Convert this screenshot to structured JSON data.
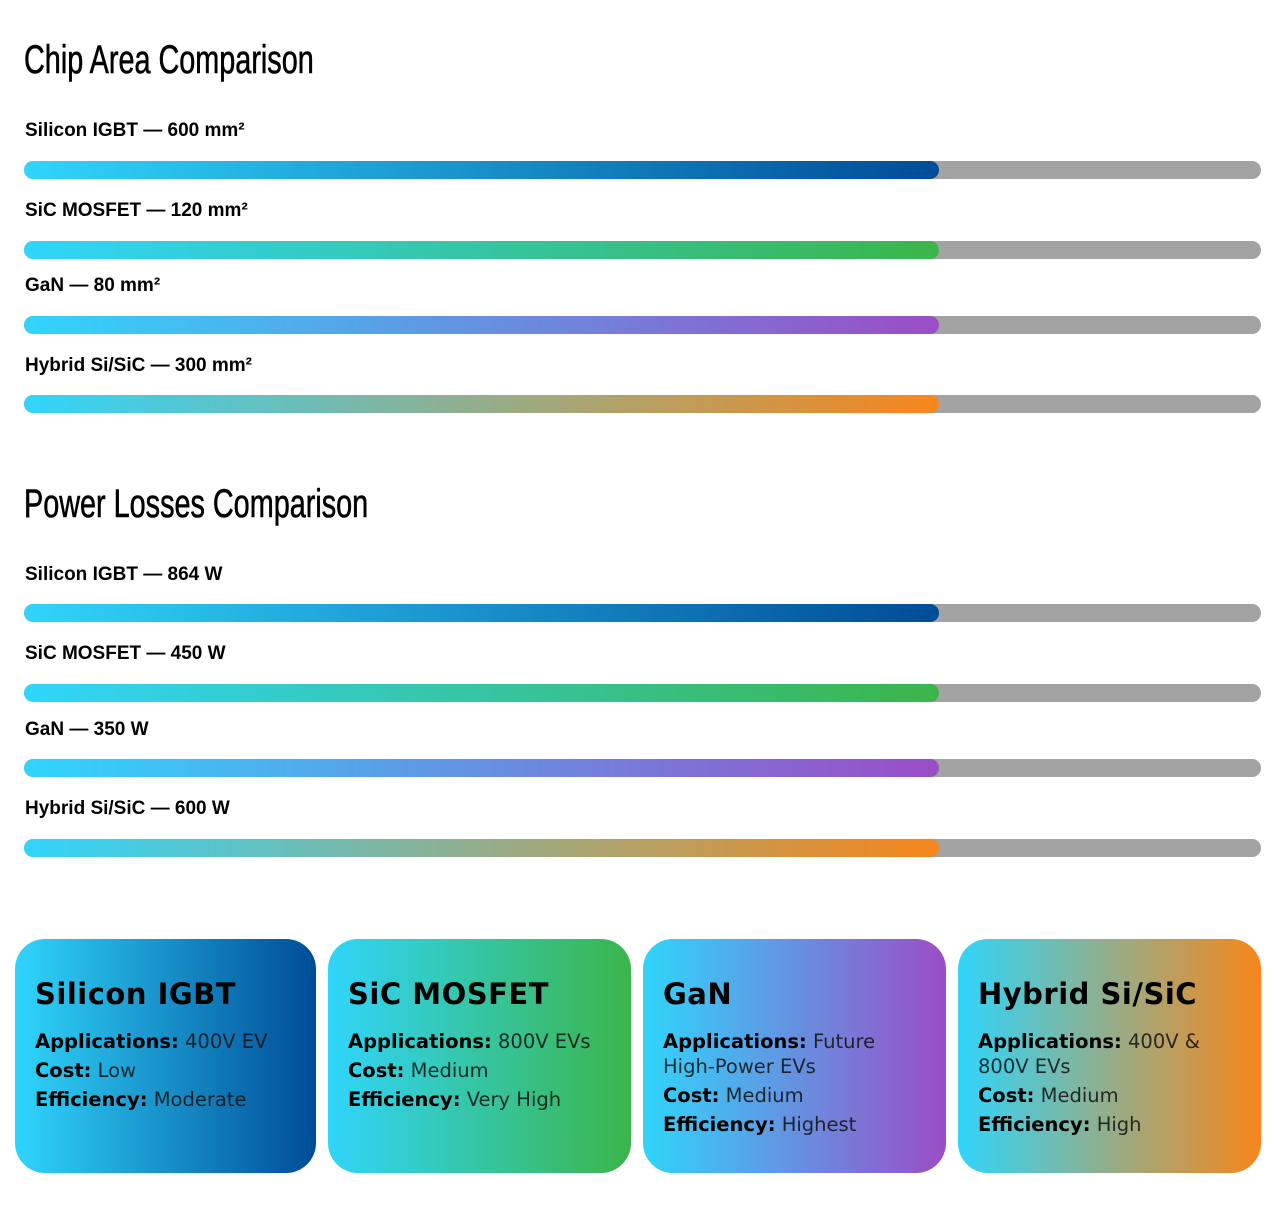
{
  "colors": {
    "start": "#30d5fb",
    "silicon_igbt": "#004c97",
    "sic_mosfet": "#3bb54a",
    "gan": "#9b4dc5",
    "hybrid": "#f7861b",
    "track": "#a3a3a3"
  },
  "chart_data": [
    {
      "type": "bar",
      "title": "Chip Area Comparison",
      "unit": "mm²",
      "bars": [
        {
          "label": "Silicon IGBT — 600 mm²",
          "name": "Silicon IGBT",
          "value": 600,
          "fill_percent": 74,
          "color_key": "silicon_igbt"
        },
        {
          "label": "SiC MOSFET — 120 mm²",
          "name": "SiC MOSFET",
          "value": 120,
          "fill_percent": 74,
          "color_key": "sic_mosfet"
        },
        {
          "label": "GaN — 80 mm²",
          "name": "GaN",
          "value": 80,
          "fill_percent": 74,
          "color_key": "gan"
        },
        {
          "label": "Hybrid Si/SiC — 300 mm²",
          "name": "Hybrid Si/SiC",
          "value": 300,
          "fill_percent": 74,
          "color_key": "hybrid"
        }
      ]
    },
    {
      "type": "bar",
      "title": "Power Losses Comparison",
      "unit": "W",
      "bars": [
        {
          "label": "Silicon IGBT — 864 W",
          "name": "Silicon IGBT",
          "value": 864,
          "fill_percent": 74,
          "color_key": "silicon_igbt"
        },
        {
          "label": "SiC MOSFET — 450 W",
          "name": "SiC MOSFET",
          "value": 450,
          "fill_percent": 74,
          "color_key": "sic_mosfet"
        },
        {
          "label": "GaN — 350 W",
          "name": "GaN",
          "value": 350,
          "fill_percent": 74,
          "color_key": "gan"
        },
        {
          "label": "Hybrid Si/SiC — 600 W",
          "name": "Hybrid Si/SiC",
          "value": 600,
          "fill_percent": 74,
          "color_key": "hybrid"
        }
      ]
    }
  ],
  "cards": [
    {
      "title": "Silicon IGBT",
      "applications_label": "Applications:",
      "applications": "400V EV",
      "cost_label": "Cost:",
      "cost": "Low",
      "efficiency_label": "Efficiency:",
      "efficiency": "Moderate",
      "color_key": "silicon_igbt"
    },
    {
      "title": "SiC MOSFET",
      "applications_label": "Applications:",
      "applications": "800V EVs",
      "cost_label": "Cost:",
      "cost": "Medium",
      "efficiency_label": "Efficiency:",
      "efficiency": "Very High",
      "color_key": "sic_mosfet"
    },
    {
      "title": "GaN",
      "applications_label": "Applications:",
      "applications": "Future High-Power EVs",
      "cost_label": "Cost:",
      "cost": "Medium",
      "efficiency_label": "Efficiency:",
      "efficiency": "Highest",
      "color_key": "gan"
    },
    {
      "title": "Hybrid Si/SiC",
      "applications_label": "Applications:",
      "applications": "400V & 800V EVs",
      "cost_label": "Cost:",
      "cost": "Medium",
      "efficiency_label": "Efficiency:",
      "efficiency": "High",
      "color_key": "hybrid"
    }
  ]
}
